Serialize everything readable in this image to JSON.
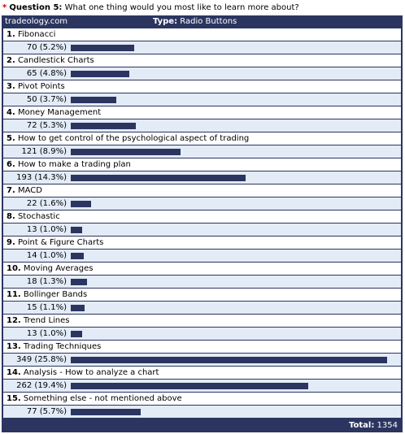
{
  "question": {
    "required_mark": "*",
    "number_label": "Question 5:",
    "text": "What one thing would you most like to learn more about?"
  },
  "header": {
    "site": "tradeology.com",
    "type_label": "Type:",
    "type_value": "Radio Buttons"
  },
  "options": [
    {
      "num": "1.",
      "label": "Fibonacci",
      "result": "70 (5.2%)",
      "count": 70
    },
    {
      "num": "2.",
      "label": "Candlestick Charts",
      "result": "65 (4.8%)",
      "count": 65
    },
    {
      "num": "3.",
      "label": "Pivot Points",
      "result": "50 (3.7%)",
      "count": 50
    },
    {
      "num": "4.",
      "label": "Money Management",
      "result": "72 (5.3%)",
      "count": 72
    },
    {
      "num": "5.",
      "label": "How to get control of the psychological aspect of trading",
      "result": "121 (8.9%)",
      "count": 121
    },
    {
      "num": "6.",
      "label": "How to make a trading plan",
      "result": "193 (14.3%)",
      "count": 193
    },
    {
      "num": "7.",
      "label": "MACD",
      "result": "22 (1.6%)",
      "count": 22
    },
    {
      "num": "8.",
      "label": "Stochastic",
      "result": "13 (1.0%)",
      "count": 13
    },
    {
      "num": "9.",
      "label": "Point & Figure Charts",
      "result": "14 (1.0%)",
      "count": 14
    },
    {
      "num": "10.",
      "label": "Moving Averages",
      "result": "18 (1.3%)",
      "count": 18
    },
    {
      "num": "11.",
      "label": "Bollinger Bands",
      "result": "15 (1.1%)",
      "count": 15
    },
    {
      "num": "12.",
      "label": "Trend Lines",
      "result": "13 (1.0%)",
      "count": 13
    },
    {
      "num": "13.",
      "label": "Trading Techniques",
      "result": "349 (25.8%)",
      "count": 349
    },
    {
      "num": "14.",
      "label": "Analysis - How to analyze a chart",
      "result": "262 (19.4%)",
      "count": 262
    },
    {
      "num": "15.",
      "label": "Something else - not mentioned above",
      "result": "77 (5.7%)",
      "count": 77
    }
  ],
  "footer": {
    "total_label": "Total:",
    "total_value": "1354"
  },
  "colors": {
    "panel": "#2b3560",
    "result_row": "#e3ebf7",
    "required": "#cc0000"
  }
}
